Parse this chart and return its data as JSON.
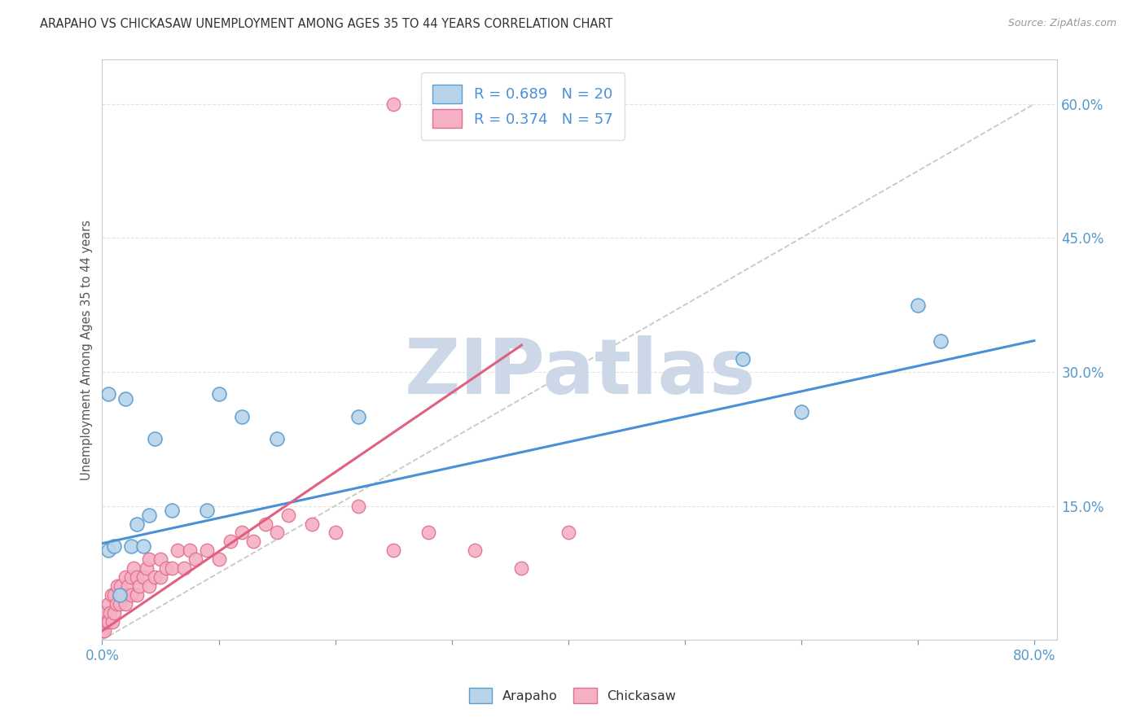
{
  "title": "ARAPAHO VS CHICKASAW UNEMPLOYMENT AMONG AGES 35 TO 44 YEARS CORRELATION CHART",
  "source": "Source: ZipAtlas.com",
  "ylabel": "Unemployment Among Ages 35 to 44 years",
  "xlim": [
    0.0,
    0.82
  ],
  "ylim": [
    0.0,
    0.65
  ],
  "xticks": [
    0.0,
    0.1,
    0.2,
    0.3,
    0.4,
    0.5,
    0.6,
    0.7,
    0.8
  ],
  "yticks": [
    0.0,
    0.15,
    0.3,
    0.45,
    0.6
  ],
  "arapaho_color": "#b8d4ea",
  "arapaho_edge": "#5a9fd4",
  "chickasaw_color": "#f5b0c5",
  "chickasaw_edge": "#e0708a",
  "arapaho_line_color": "#4a90d9",
  "chickasaw_line_color": "#e06080",
  "ref_line_color": "#c8c8c8",
  "tick_color": "#5599cc",
  "watermark": "ZIPatlas",
  "watermark_color": "#ccd8e8",
  "background_color": "#ffffff",
  "grid_color": "#e4e4e4",
  "arapaho_x": [
    0.005,
    0.005,
    0.01,
    0.015,
    0.02,
    0.025,
    0.03,
    0.035,
    0.04,
    0.045,
    0.06,
    0.09,
    0.1,
    0.12,
    0.15,
    0.22,
    0.55,
    0.6,
    0.7,
    0.72
  ],
  "arapaho_y": [
    0.1,
    0.275,
    0.105,
    0.05,
    0.27,
    0.105,
    0.13,
    0.105,
    0.14,
    0.225,
    0.145,
    0.145,
    0.275,
    0.25,
    0.225,
    0.25,
    0.315,
    0.255,
    0.375,
    0.335
  ],
  "chickasaw_x": [
    0.0,
    0.0,
    0.0,
    0.002,
    0.002,
    0.004,
    0.005,
    0.005,
    0.007,
    0.008,
    0.009,
    0.01,
    0.01,
    0.012,
    0.013,
    0.015,
    0.016,
    0.018,
    0.02,
    0.02,
    0.022,
    0.025,
    0.025,
    0.027,
    0.03,
    0.03,
    0.032,
    0.035,
    0.038,
    0.04,
    0.04,
    0.045,
    0.05,
    0.05,
    0.055,
    0.06,
    0.065,
    0.07,
    0.075,
    0.08,
    0.09,
    0.1,
    0.11,
    0.12,
    0.13,
    0.14,
    0.15,
    0.16,
    0.18,
    0.2,
    0.22,
    0.25,
    0.28,
    0.32,
    0.36,
    0.4,
    0.25
  ],
  "chickasaw_y": [
    0.01,
    0.02,
    0.03,
    0.01,
    0.03,
    0.02,
    0.02,
    0.04,
    0.03,
    0.05,
    0.02,
    0.03,
    0.05,
    0.04,
    0.06,
    0.04,
    0.06,
    0.05,
    0.04,
    0.07,
    0.06,
    0.05,
    0.07,
    0.08,
    0.05,
    0.07,
    0.06,
    0.07,
    0.08,
    0.06,
    0.09,
    0.07,
    0.07,
    0.09,
    0.08,
    0.08,
    0.1,
    0.08,
    0.1,
    0.09,
    0.1,
    0.09,
    0.11,
    0.12,
    0.11,
    0.13,
    0.12,
    0.14,
    0.13,
    0.12,
    0.15,
    0.1,
    0.12,
    0.1,
    0.08,
    0.12,
    0.6
  ],
  "arapaho_trend_x0": 0.0,
  "arapaho_trend_y0": 0.108,
  "arapaho_trend_x1": 0.8,
  "arapaho_trend_y1": 0.335,
  "chickasaw_trend_x0": 0.0,
  "chickasaw_trend_y0": 0.01,
  "chickasaw_trend_x1": 0.36,
  "chickasaw_trend_y1": 0.33
}
